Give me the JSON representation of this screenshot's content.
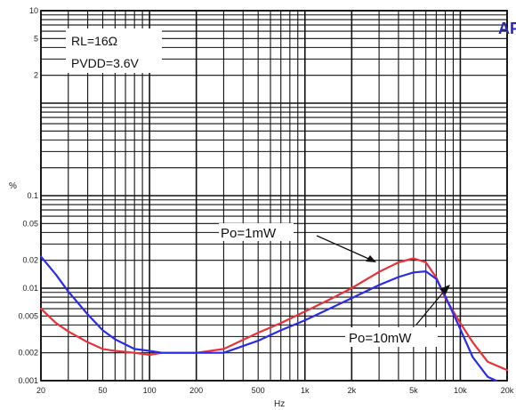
{
  "chart_data": {
    "type": "line",
    "xscale": "log",
    "yscale": "log",
    "xlim": [
      20,
      20000
    ],
    "ylim": [
      0.001,
      10
    ],
    "grid": true,
    "xlabel": "Hz",
    "ylabel": "%",
    "x_ticks": [
      {
        "v": 20,
        "label": "20"
      },
      {
        "v": 50,
        "label": "50"
      },
      {
        "v": 100,
        "label": "100"
      },
      {
        "v": 200,
        "label": "200"
      },
      {
        "v": 500,
        "label": "500"
      },
      {
        "v": 1000,
        "label": "1k"
      },
      {
        "v": 2000,
        "label": "2k"
      },
      {
        "v": 5000,
        "label": "5k"
      },
      {
        "v": 10000,
        "label": "10k"
      },
      {
        "v": 20000,
        "label": "20k"
      }
    ],
    "y_ticks": [
      {
        "v": 10,
        "label": "10"
      },
      {
        "v": 5,
        "label": "5"
      },
      {
        "v": 2,
        "label": "2"
      },
      {
        "v": 0.1,
        "label": "0.1"
      },
      {
        "v": 0.05,
        "label": "0.05"
      },
      {
        "v": 0.02,
        "label": "0.02"
      },
      {
        "v": 0.01,
        "label": "0.01"
      },
      {
        "v": 0.005,
        "label": "0.005"
      },
      {
        "v": 0.002,
        "label": "0.002"
      },
      {
        "v": 0.001,
        "label": "0.001"
      }
    ],
    "series": [
      {
        "name": "Po=1mW",
        "color": "#e8323a",
        "x": [
          20,
          25,
          30,
          40,
          50,
          60,
          80,
          100,
          120,
          150,
          200,
          300,
          500,
          700,
          1000,
          1500,
          2000,
          3000,
          4000,
          5000,
          6000,
          7000,
          8000,
          10000,
          12000,
          15000,
          20000
        ],
        "y": [
          0.006,
          0.0042,
          0.0034,
          0.0026,
          0.0022,
          0.0021,
          0.002,
          0.0019,
          0.002,
          0.002,
          0.002,
          0.0022,
          0.0033,
          0.0042,
          0.0056,
          0.0078,
          0.01,
          0.015,
          0.019,
          0.021,
          0.019,
          0.013,
          0.0078,
          0.0042,
          0.0026,
          0.0016,
          0.0013
        ]
      },
      {
        "name": "Po=10mW",
        "color": "#2b2bea",
        "x": [
          20,
          25,
          30,
          40,
          50,
          60,
          80,
          100,
          120,
          150,
          200,
          300,
          500,
          700,
          1000,
          1500,
          2000,
          3000,
          4000,
          5000,
          6000,
          7000,
          8000,
          10000,
          12000,
          15000,
          17000
        ],
        "y": [
          0.022,
          0.014,
          0.0092,
          0.0052,
          0.0035,
          0.0028,
          0.0022,
          0.0021,
          0.002,
          0.002,
          0.002,
          0.002,
          0.0027,
          0.0035,
          0.0045,
          0.0062,
          0.0078,
          0.0108,
          0.0132,
          0.0148,
          0.0152,
          0.0126,
          0.0082,
          0.0036,
          0.0018,
          0.0011,
          0.001
        ]
      }
    ],
    "annotations": [
      {
        "text": "Po=1mW",
        "series": 0
      },
      {
        "text": "Po=10mW",
        "series": 1
      }
    ],
    "notes": [
      "RL=16Ω",
      "PVDD=3.6V"
    ]
  },
  "colors": {
    "grid": "#111111",
    "background": "#ffffff",
    "po_1mw": "#e8323a",
    "po_10mw": "#2b2bea"
  }
}
